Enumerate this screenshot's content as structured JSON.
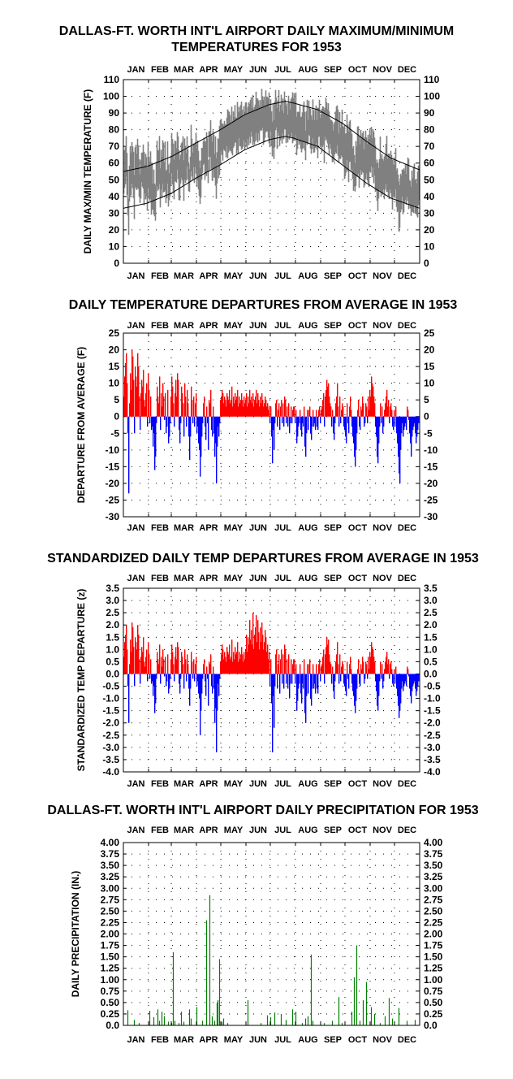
{
  "chart_data": [
    {
      "type": "line",
      "title_lines": [
        "DALLAS-FT. WORTH INT'L AIRPORT DAILY MAXIMUM/MINIMUM",
        "TEMPERATURES FOR 1953"
      ],
      "ylabel": "DAILY MAX/MIN TEMPERATURE  (F)",
      "months": [
        "JAN",
        "FEB",
        "MAR",
        "APR",
        "MAY",
        "JUN",
        "JUL",
        "AUG",
        "SEP",
        "OCT",
        "NOV",
        "DEC"
      ],
      "ylim": [
        0,
        110
      ],
      "yticks": [
        "0",
        "10",
        "20",
        "30",
        "40",
        "50",
        "60",
        "70",
        "80",
        "90",
        "100",
        "110"
      ],
      "grid": "dotted",
      "series": [
        {
          "role": "observed daily max/min range",
          "color": "#808080"
        },
        {
          "role": "normal daily maximum",
          "color": "#000000",
          "points": [
            [
              1,
              55
            ],
            [
              30,
              58
            ],
            [
              60,
              64
            ],
            [
              90,
              72
            ],
            [
              120,
              80
            ],
            [
              150,
              89
            ],
            [
              180,
              95
            ],
            [
              200,
              97
            ],
            [
              210,
              96
            ],
            [
              240,
              92
            ],
            [
              270,
              84
            ],
            [
              300,
              73
            ],
            [
              330,
              63
            ],
            [
              365,
              56
            ]
          ]
        },
        {
          "role": "normal daily minimum",
          "color": "#000000",
          "points": [
            [
              1,
              33
            ],
            [
              30,
              36
            ],
            [
              60,
              42
            ],
            [
              90,
              51
            ],
            [
              120,
              59
            ],
            [
              150,
              68
            ],
            [
              180,
              74
            ],
            [
              200,
              76
            ],
            [
              210,
              75
            ],
            [
              240,
              70
            ],
            [
              270,
              59
            ],
            [
              300,
              48
            ],
            [
              330,
              39
            ],
            [
              365,
              33
            ]
          ]
        }
      ]
    },
    {
      "type": "bar",
      "title": "DAILY TEMPERATURE DEPARTURES FROM AVERAGE IN 1953",
      "ylabel": "DEPARTURE FROM AVERAGE  (F)",
      "months": [
        "JAN",
        "FEB",
        "MAR",
        "APR",
        "MAY",
        "JUN",
        "JUL",
        "AUG",
        "SEP",
        "OCT",
        "NOV",
        "DEC"
      ],
      "ylim": [
        -30,
        25
      ],
      "yticks": [
        "-30",
        "-25",
        "-20",
        "-15",
        "-10",
        "-5",
        "0",
        "5",
        "10",
        "15",
        "20",
        "25"
      ],
      "grid": "dotted",
      "positive_color": "#ff0000",
      "negative_color": "#0000ff",
      "values": [
        6,
        12,
        16,
        19,
        10,
        -5,
        -23,
        4,
        13,
        8,
        20,
        18,
        11,
        -5,
        15,
        12,
        9,
        19,
        15,
        6,
        -4,
        7,
        11,
        9,
        14,
        5,
        3,
        7,
        10,
        -3,
        13,
        8,
        -2,
        6,
        -4,
        -3,
        -9,
        -5,
        -16,
        -12,
        -2,
        9,
        6,
        4,
        12,
        -4,
        7,
        3,
        10,
        6,
        -1,
        7,
        -5,
        -3,
        8,
        -8,
        -6,
        -2,
        6,
        12,
        9,
        4,
        -3,
        7,
        11,
        6,
        13,
        11,
        -4,
        -8,
        -2,
        9,
        7,
        4,
        -6,
        10,
        6,
        -3,
        8,
        4,
        -6,
        -13,
        -6,
        9,
        5,
        -2,
        6,
        -3,
        4,
        7,
        -5,
        -3,
        -8,
        -10,
        -18,
        -12,
        -6,
        -2,
        4,
        6,
        -3,
        -7,
        3,
        -2,
        -10,
        5,
        4,
        8,
        -4,
        -6,
        3,
        -5,
        -12,
        -8,
        -20,
        -9,
        -3,
        -6,
        -2,
        5,
        6,
        8,
        7,
        4,
        6,
        5,
        3,
        7,
        6,
        5,
        8,
        4,
        5,
        9,
        3,
        6,
        4,
        7,
        5,
        6,
        8,
        3,
        6,
        4,
        5,
        7,
        5,
        3,
        6,
        4,
        5,
        7,
        3,
        6,
        4,
        8,
        5,
        6,
        4,
        7,
        3,
        5,
        6,
        8,
        4,
        7,
        5,
        3,
        6,
        4,
        7,
        5,
        3,
        4,
        6,
        5,
        3,
        4,
        2,
        3,
        -2,
        3,
        -6,
        -14,
        -4,
        -10,
        -2,
        4,
        5,
        -3,
        2,
        4,
        -4,
        3,
        5,
        -2,
        4,
        -3,
        6,
        5,
        -2,
        3,
        -3,
        4,
        -5,
        -2,
        3,
        -2,
        2,
        3,
        3,
        -2,
        2,
        -8,
        -6,
        -3,
        -2,
        2,
        -4,
        -6,
        -2,
        -3,
        3,
        -9,
        -12,
        -5,
        2,
        -4,
        2,
        3,
        -5,
        -7,
        -3,
        2,
        -3,
        -2,
        -4,
        2,
        -3,
        -4,
        2,
        3,
        -2,
        2,
        3,
        5,
        7,
        -3,
        6,
        8,
        11,
        9,
        10,
        6,
        4,
        3,
        -3,
        2,
        -5,
        -7,
        -2,
        4,
        6,
        10,
        3,
        -3,
        6,
        -2,
        2,
        4,
        3,
        -3,
        -4,
        -6,
        -8,
        4,
        -2,
        -5,
        3,
        6,
        2,
        -3,
        -6,
        -8,
        -12,
        -15,
        -10,
        -5,
        2,
        5,
        -3,
        -4,
        3,
        2,
        6,
        4,
        -3,
        -2,
        4,
        3,
        -2,
        6,
        2,
        8,
        6,
        12,
        10,
        9,
        6,
        4,
        -3,
        -6,
        -12,
        -14,
        -8,
        -3,
        4,
        -2,
        3,
        -5,
        -3,
        2,
        4,
        6,
        8,
        3,
        5,
        -2,
        3,
        4,
        2,
        -3,
        -4,
        2,
        -3,
        3,
        -5,
        -8,
        -12,
        -17,
        -20,
        -10,
        -5,
        -2,
        -6,
        -4,
        -3,
        -2,
        -4,
        3,
        2,
        -1,
        -5,
        -8,
        -12,
        -6,
        -4,
        -3,
        -2,
        -5,
        -8,
        -6,
        -4,
        -2
      ]
    },
    {
      "type": "bar",
      "title": "STANDARDIZED DAILY TEMP DEPARTURES FROM AVERAGE IN 1953",
      "ylabel": "STANDARDIZED TEMP DEPARTURE  (z)",
      "months": [
        "JAN",
        "FEB",
        "MAR",
        "APR",
        "MAY",
        "JUN",
        "JUL",
        "AUG",
        "SEP",
        "OCT",
        "NOV",
        "DEC"
      ],
      "ylim": [
        -4.0,
        3.5
      ],
      "yticks": [
        "-4.0",
        "-3.5",
        "-3.0",
        "-2.5",
        "-2.0",
        "-1.5",
        "-1.0",
        "-0.5",
        "0.0",
        "0.5",
        "1.0",
        "1.5",
        "2.0",
        "2.5",
        "3.0",
        "3.5"
      ],
      "grid": "dotted",
      "positive_color": "#ff0000",
      "negative_color": "#0000ff",
      "values": [
        0.7,
        1.3,
        1.6,
        2.0,
        1.0,
        -0.5,
        -2.0,
        0.4,
        1.4,
        0.9,
        2.1,
        1.9,
        1.1,
        -0.5,
        1.5,
        1.3,
        1.0,
        2.0,
        1.6,
        0.6,
        -0.4,
        0.7,
        1.1,
        0.9,
        1.5,
        0.5,
        0.3,
        0.7,
        1.0,
        -0.3,
        1.3,
        0.8,
        -0.2,
        0.6,
        -0.4,
        -0.3,
        -0.9,
        -0.5,
        -1.6,
        -1.2,
        -0.2,
        0.9,
        0.6,
        0.4,
        1.2,
        -0.4,
        0.7,
        0.3,
        1.0,
        0.6,
        -0.1,
        0.7,
        -0.5,
        -0.3,
        0.8,
        -0.8,
        -0.6,
        -0.2,
        0.6,
        1.2,
        0.9,
        0.4,
        -0.3,
        0.7,
        1.1,
        0.6,
        1.3,
        1.1,
        -0.4,
        -0.8,
        -0.2,
        0.9,
        0.7,
        0.4,
        -0.6,
        1.0,
        0.6,
        -0.3,
        0.8,
        0.4,
        -0.6,
        -1.3,
        -0.6,
        0.9,
        0.5,
        -0.2,
        0.6,
        -0.3,
        0.4,
        0.7,
        -0.5,
        -0.3,
        -0.8,
        -1.0,
        -2.5,
        -1.5,
        -0.8,
        -0.2,
        0.4,
        0.6,
        -0.3,
        -0.9,
        0.3,
        -0.2,
        -1.3,
        0.5,
        0.4,
        0.8,
        -0.5,
        -0.8,
        0.3,
        -0.6,
        -2.0,
        -1.4,
        -3.2,
        -1.5,
        -0.4,
        -0.9,
        -0.2,
        0.5,
        0.8,
        1.2,
        1.0,
        0.6,
        0.9,
        0.7,
        0.5,
        1.1,
        0.9,
        0.8,
        1.2,
        0.6,
        0.7,
        1.4,
        0.5,
        0.9,
        0.6,
        1.1,
        0.8,
        0.9,
        1.3,
        0.5,
        0.9,
        0.6,
        0.8,
        1.1,
        0.8,
        0.5,
        0.9,
        0.6,
        1.0,
        1.6,
        0.9,
        1.5,
        1.2,
        2.2,
        1.4,
        1.8,
        1.2,
        2.5,
        1.0,
        1.6,
        1.9,
        2.4,
        1.3,
        2.2,
        1.7,
        1.0,
        1.9,
        1.3,
        2.1,
        1.6,
        1.0,
        1.3,
        1.8,
        1.5,
        0.9,
        1.2,
        0.6,
        0.9,
        -0.5,
        0.6,
        -1.2,
        -3.2,
        -0.9,
        -2.2,
        -0.5,
        0.8,
        1.0,
        -0.6,
        0.4,
        0.8,
        -0.8,
        0.6,
        1.0,
        -0.4,
        0.8,
        -0.6,
        1.2,
        1.0,
        -0.4,
        0.6,
        -0.6,
        0.8,
        -1.0,
        -0.4,
        0.6,
        -0.4,
        0.4,
        0.6,
        0.6,
        -0.4,
        0.4,
        -1.5,
        -1.1,
        -0.6,
        -0.4,
        0.4,
        -0.8,
        -1.2,
        -0.4,
        -0.6,
        0.6,
        -1.6,
        -2.0,
        -0.9,
        0.4,
        -0.8,
        0.4,
        0.6,
        -1.0,
        -1.3,
        -0.6,
        0.4,
        -0.6,
        -0.4,
        -0.8,
        0.4,
        -0.6,
        -0.8,
        0.4,
        0.6,
        -0.3,
        0.3,
        0.4,
        0.7,
        1.0,
        -0.4,
        0.8,
        1.1,
        1.5,
        1.2,
        1.4,
        0.8,
        0.5,
        0.4,
        -0.4,
        0.3,
        -0.7,
        -1.0,
        -0.3,
        0.5,
        0.8,
        1.3,
        0.4,
        -0.4,
        0.8,
        -0.3,
        0.3,
        0.5,
        0.4,
        -0.4,
        -0.5,
        -0.7,
        -0.9,
        0.5,
        -0.2,
        -0.6,
        0.4,
        0.7,
        0.2,
        -0.4,
        -0.7,
        -0.9,
        -1.3,
        -1.6,
        -1.1,
        -0.6,
        0.2,
        0.6,
        -0.4,
        -0.5,
        0.4,
        0.2,
        0.7,
        0.5,
        -0.4,
        -0.2,
        0.5,
        0.4,
        -0.2,
        0.7,
        0.2,
        0.9,
        0.7,
        1.3,
        1.1,
        1.0,
        0.7,
        0.5,
        -0.3,
        -0.7,
        -1.3,
        -1.5,
        -0.9,
        -0.3,
        0.5,
        -0.2,
        0.4,
        -0.6,
        -0.3,
        0.2,
        0.5,
        0.7,
        0.9,
        0.4,
        0.6,
        -0.2,
        0.4,
        0.5,
        0.2,
        -0.4,
        -0.5,
        0.2,
        -0.4,
        0.3,
        -0.6,
        -0.9,
        -1.3,
        -1.8,
        -1.5,
        -1.2,
        -0.6,
        -0.3,
        -0.7,
        -0.5,
        -0.4,
        -0.3,
        -0.5,
        0.3,
        0.2,
        -0.1,
        -0.6,
        -0.9,
        -1.2,
        -0.7,
        -0.5,
        -0.4,
        -0.3,
        -0.6,
        -0.9,
        -0.7,
        -0.5,
        -0.3
      ]
    },
    {
      "type": "bar",
      "title": "DALLAS-FT. WORTH INT'L AIRPORT DAILY PRECIPITATION FOR 1953",
      "ylabel": "DAILY PRECIPITATION (IN.)",
      "months": [
        "JAN",
        "FEB",
        "MAR",
        "APR",
        "MAY",
        "JUN",
        "JUL",
        "AUG",
        "SEP",
        "OCT",
        "NOV",
        "DEC"
      ],
      "ylim": [
        0,
        4.0
      ],
      "yticks": [
        "0.0",
        "0.25",
        "0.50",
        "0.75",
        "1.00",
        "1.25",
        "1.50",
        "1.75",
        "2.00",
        "2.25",
        "2.50",
        "2.75",
        "3.00",
        "3.25",
        "3.50",
        "3.75",
        "4.00"
      ],
      "grid": "dotted",
      "color": "#008000",
      "events": [
        [
          6,
          0.33
        ],
        [
          14,
          0.12
        ],
        [
          20,
          0.05
        ],
        [
          33,
          0.32
        ],
        [
          38,
          0.18
        ],
        [
          43,
          0.35
        ],
        [
          45,
          0.1
        ],
        [
          48,
          0.3
        ],
        [
          51,
          0.2
        ],
        [
          56,
          0.08
        ],
        [
          60,
          0.05
        ],
        [
          62,
          1.6
        ],
        [
          64,
          0.1
        ],
        [
          69,
          0.05
        ],
        [
          72,
          0.3
        ],
        [
          75,
          0.08
        ],
        [
          82,
          0.35
        ],
        [
          84,
          0.15
        ],
        [
          91,
          0.4
        ],
        [
          98,
          0.1
        ],
        [
          103,
          2.3
        ],
        [
          107,
          2.85
        ],
        [
          110,
          0.2
        ],
        [
          113,
          0.1
        ],
        [
          116,
          0.5
        ],
        [
          117,
          0.55
        ],
        [
          119,
          1.45
        ],
        [
          122,
          0.08
        ],
        [
          124,
          0.15
        ],
        [
          129,
          0.05
        ],
        [
          154,
          0.55
        ],
        [
          170,
          0.05
        ],
        [
          178,
          0.22
        ],
        [
          182,
          0.18
        ],
        [
          187,
          0.28
        ],
        [
          195,
          0.25
        ],
        [
          201,
          0.12
        ],
        [
          209,
          0.35
        ],
        [
          213,
          0.3
        ],
        [
          221,
          0.05
        ],
        [
          225,
          0.15
        ],
        [
          228,
          0.2
        ],
        [
          232,
          1.55
        ],
        [
          234,
          0.1
        ],
        [
          248,
          0.05
        ],
        [
          258,
          0.1
        ],
        [
          266,
          0.62
        ],
        [
          270,
          0.05
        ],
        [
          282,
          0.3
        ],
        [
          285,
          1.05
        ],
        [
          288,
          1.75
        ],
        [
          292,
          0.1
        ],
        [
          296,
          0.55
        ],
        [
          300,
          0.95
        ],
        [
          306,
          0.4
        ],
        [
          310,
          0.25
        ],
        [
          317,
          0.05
        ],
        [
          323,
          0.2
        ],
        [
          328,
          0.6
        ],
        [
          332,
          0.15
        ],
        [
          340,
          0.38
        ],
        [
          350,
          0.1
        ],
        [
          360,
          0.12
        ]
      ]
    }
  ]
}
